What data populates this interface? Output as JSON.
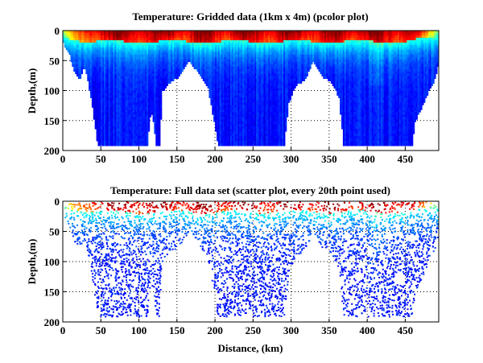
{
  "chart_data": [
    {
      "type": "heatmap",
      "title": "Temperature: Gridded data (1km x 4m) (pcolor plot)",
      "xlabel": "",
      "ylabel": "Depth,(m)",
      "xlim": [
        0,
        494
      ],
      "ylim": [
        200,
        0
      ],
      "xticks": [
        0,
        50,
        100,
        150,
        200,
        250,
        300,
        350,
        400,
        450
      ],
      "yticks": [
        0,
        50,
        100,
        150,
        200
      ],
      "grid": true,
      "colormap": "jet",
      "cell_size": {
        "dx_km": 1,
        "dz_m": 4
      },
      "bottom_profile": {
        "distance_km": [
          0,
          8,
          15,
          22,
          27,
          30,
          36,
          45,
          110,
          115,
          118,
          122,
          126,
          130,
          140,
          152,
          165,
          178,
          190,
          198,
          203,
          290,
          296,
          305,
          318,
          328,
          340,
          352,
          362,
          368,
          458,
          462,
          470,
          480,
          488,
          494
        ],
        "depth_m": [
          20,
          40,
          70,
          80,
          60,
          70,
          110,
          190,
          190,
          130,
          150,
          190,
          190,
          100,
          85,
          75,
          50,
          70,
          95,
          150,
          190,
          190,
          120,
          90,
          80,
          50,
          75,
          85,
          110,
          190,
          190,
          150,
          130,
          100,
          80,
          50
        ]
      },
      "surface_warm_layer_depth_m": 15
    },
    {
      "type": "scatter",
      "title": "Temperature: Full data set (scatter plot, every 20th point used)",
      "xlabel": "Distance, (km)",
      "ylabel": "Depth,(m)",
      "xlim": [
        0,
        494
      ],
      "ylim": [
        200,
        0
      ],
      "xticks": [
        0,
        50,
        100,
        150,
        200,
        250,
        300,
        350,
        400,
        450
      ],
      "yticks": [
        0,
        50,
        100,
        150,
        200
      ],
      "grid": true,
      "colormap": "jet",
      "sampling": "every 20th point"
    }
  ]
}
